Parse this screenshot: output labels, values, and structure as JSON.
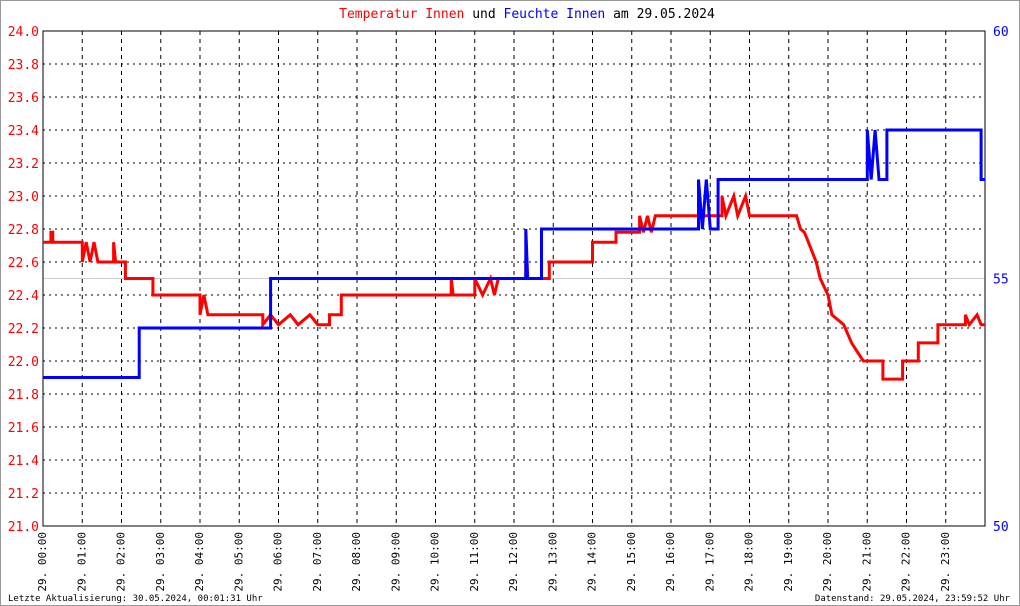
{
  "chart_data": {
    "type": "line",
    "title_words": [
      "und",
      "am 29.05.2024"
    ],
    "footer_left": "Letzte Aktualisierung: 30.05.2024, 00:01:31 Uhr",
    "footer_right": "Datenstand: 29.05.2024, 23:59:52 Uhr",
    "xlim": [
      0,
      24
    ],
    "xticks": [
      {
        "value": 0,
        "label": "29. 00:00"
      },
      {
        "value": 1,
        "label": "29. 01:00"
      },
      {
        "value": 2,
        "label": "29. 02:00"
      },
      {
        "value": 3,
        "label": "29. 03:00"
      },
      {
        "value": 4,
        "label": "29. 04:00"
      },
      {
        "value": 5,
        "label": "29. 05:00"
      },
      {
        "value": 6,
        "label": "29. 06:00"
      },
      {
        "value": 7,
        "label": "29. 07:00"
      },
      {
        "value": 8,
        "label": "29. 08:00"
      },
      {
        "value": 9,
        "label": "29. 09:00"
      },
      {
        "value": 10,
        "label": "29. 10:00"
      },
      {
        "value": 11,
        "label": "29. 11:00"
      },
      {
        "value": 12,
        "label": "29. 12:00"
      },
      {
        "value": 13,
        "label": "29. 13:00"
      },
      {
        "value": 14,
        "label": "29. 14:00"
      },
      {
        "value": 15,
        "label": "29. 15:00"
      },
      {
        "value": 16,
        "label": "29. 16:00"
      },
      {
        "value": 17,
        "label": "29. 17:00"
      },
      {
        "value": 18,
        "label": "29. 18:00"
      },
      {
        "value": 19,
        "label": "29. 19:00"
      },
      {
        "value": 20,
        "label": "29. 20:00"
      },
      {
        "value": 21,
        "label": "29. 21:00"
      },
      {
        "value": 22,
        "label": "29. 22:00"
      },
      {
        "value": 23,
        "label": "29. 23:00"
      }
    ],
    "ylim": [
      21,
      24
    ],
    "yticks": [
      {
        "value": 21,
        "label": "21.0"
      },
      21.2,
      21.4,
      21.6,
      21.8,
      {
        "value": 22,
        "label": "22.0"
      },
      22.2,
      22.4,
      22.6,
      22.8,
      {
        "value": 23,
        "label": "23.0"
      },
      23.2,
      23.4,
      23.6,
      23.8,
      {
        "value": 24,
        "label": "24.0"
      }
    ],
    "y2lim": [
      50,
      60
    ],
    "y2ticks": [
      50,
      55,
      60
    ],
    "grid": true,
    "series": [
      {
        "name": "Temperatur Innen",
        "color": "#ff0000",
        "axis": "y",
        "x": [
          0,
          0.2,
          0.2,
          0.25,
          0.25,
          1.0,
          1.0,
          1.1,
          1.2,
          1.3,
          1.4,
          1.8,
          1.8,
          1.85,
          2.1,
          2.1,
          2.8,
          2.8,
          4.0,
          4.0,
          4.1,
          4.2,
          5.6,
          5.6,
          5.8,
          6.0,
          6.3,
          6.5,
          6.8,
          7.0,
          7.3,
          7.3,
          7.6,
          7.6,
          10.4,
          10.4,
          10.45,
          11.0,
          11.0,
          11.2,
          11.4,
          11.5,
          11.6,
          12.3,
          12.3,
          12.35,
          12.9,
          12.9,
          14.0,
          14.0,
          14.6,
          14.6,
          15.2,
          15.2,
          15.3,
          15.4,
          15.5,
          15.6,
          17.3,
          17.3,
          17.4,
          17.6,
          17.7,
          17.9,
          18.0,
          19.2,
          19.3,
          19.4,
          19.5,
          19.7,
          19.8,
          20.0,
          20.1,
          20.4,
          20.6,
          20.9,
          21.4,
          21.4,
          21.9,
          21.9,
          22.3,
          22.3,
          22.8,
          22.8,
          23.5,
          23.5,
          23.6,
          23.8,
          23.9,
          24
        ],
        "values": [
          22.72,
          22.72,
          22.78,
          22.78,
          22.72,
          22.72,
          22.6,
          22.72,
          22.6,
          22.72,
          22.6,
          22.6,
          22.72,
          22.6,
          22.6,
          22.5,
          22.5,
          22.4,
          22.4,
          22.28,
          22.4,
          22.28,
          22.28,
          22.22,
          22.28,
          22.22,
          22.28,
          22.22,
          22.28,
          22.22,
          22.22,
          22.28,
          22.28,
          22.4,
          22.4,
          22.5,
          22.4,
          22.4,
          22.5,
          22.4,
          22.5,
          22.4,
          22.5,
          22.5,
          22.6,
          22.5,
          22.5,
          22.6,
          22.6,
          22.72,
          22.72,
          22.78,
          22.78,
          22.88,
          22.78,
          22.88,
          22.78,
          22.88,
          22.88,
          23.0,
          22.88,
          23.0,
          22.88,
          23.0,
          22.88,
          22.88,
          22.8,
          22.78,
          22.72,
          22.6,
          22.5,
          22.4,
          22.28,
          22.22,
          22.11,
          22.0,
          22.0,
          21.89,
          21.89,
          22.0,
          22.0,
          22.11,
          22.11,
          22.22,
          22.22,
          22.28,
          22.22,
          22.28,
          22.22,
          22.22
        ]
      },
      {
        "name": "Feuchte Innen",
        "color": "#0000ff",
        "axis": "y2",
        "x": [
          0,
          2.45,
          2.45,
          5.8,
          5.8,
          12.3,
          12.3,
          12.35,
          12.7,
          12.7,
          16.7,
          16.7,
          16.8,
          16.9,
          17.0,
          17.2,
          17.2,
          21.0,
          21.0,
          21.1,
          21.2,
          21.3,
          21.5,
          21.5,
          23.9,
          23.9,
          24
        ],
        "values": [
          53,
          53,
          54,
          54,
          55,
          55,
          56,
          55,
          55,
          56,
          56,
          57,
          56,
          57,
          56,
          56,
          57,
          57,
          58,
          57,
          58,
          57,
          57,
          58,
          58,
          57,
          57
        ]
      }
    ]
  }
}
